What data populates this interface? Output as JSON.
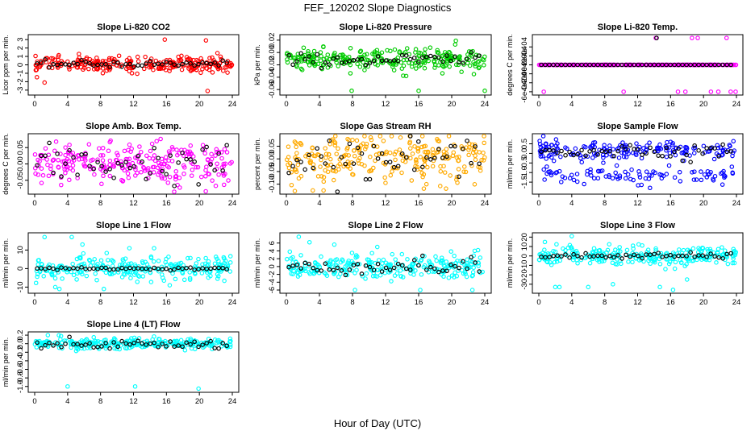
{
  "figure": {
    "title": "FEF_120202  Slope Diagnostics",
    "xlabel": "Hour of Day (UTC)"
  },
  "chart_data": [
    {
      "type": "scatter",
      "title": "Slope Li-820 CO2",
      "ylabel": "Licor ppm per min.",
      "color": "#ff0000",
      "center": 0.1,
      "spread": 0.45,
      "ylim": [
        -3.3,
        3.3
      ],
      "yticks": [
        -3,
        -2,
        -1,
        0,
        1,
        2,
        3
      ],
      "ytick_labels": [
        "-3",
        "-2",
        "-1",
        "0",
        "1",
        "2",
        "3"
      ],
      "black_center": 0.1,
      "black_spread": 0.2,
      "extremes": [
        [
          15.8,
          3.0
        ],
        [
          20.8,
          2.9
        ],
        [
          1.2,
          -2.1
        ],
        [
          21.0,
          -3.1
        ]
      ]
    },
    {
      "type": "scatter",
      "title": "Slope Li-820 Pressure",
      "ylabel": "kPa per min.",
      "color": "#00cc00",
      "center": -0.012,
      "spread": 0.009,
      "ylim": [
        -0.065,
        0.025
      ],
      "yticks": [
        -0.06,
        -0.04,
        -0.02,
        0.0,
        0.02
      ],
      "ytick_labels": [
        "-0.06",
        "-0.04",
        "-0.02",
        "0.00",
        "0.02"
      ],
      "black_center": -0.012,
      "black_spread": 0.005,
      "extremes": [
        [
          7.9,
          -0.062
        ],
        [
          16.0,
          -0.062
        ],
        [
          24.0,
          -0.062
        ],
        [
          20.5,
          0.019
        ]
      ]
    },
    {
      "type": "scatter",
      "title": "Slope Li-820 Temp.",
      "ylabel": "degrees C per min.",
      "color": "#ff00ff",
      "center": 0.0,
      "spread": 0.0,
      "ylim": [
        -0.00062,
        0.00062
      ],
      "yticks": [
        -0.0006,
        -0.0004,
        -0.0002,
        0.0,
        0.0002,
        0.0004
      ],
      "ytick_labels": [
        "-6e-04",
        "-4e-04",
        "-2e-04",
        "0e+00",
        "2e-04",
        "4e-04"
      ],
      "black_center": 0.0,
      "black_spread": 0.0,
      "extremes": [
        [
          0.6,
          -0.0006
        ],
        [
          10.3,
          -0.0006
        ],
        [
          14.2,
          0.0006
        ],
        [
          16.9,
          -0.0006
        ],
        [
          17.8,
          -0.0006
        ],
        [
          18.6,
          0.0006
        ],
        [
          19.3,
          0.0006
        ],
        [
          20.9,
          -0.0006
        ],
        [
          21.8,
          -0.0006
        ],
        [
          22.8,
          0.0006
        ],
        [
          23.3,
          -0.0006
        ],
        [
          23.9,
          -0.0006
        ]
      ],
      "black_extremes": [
        [
          14.3,
          0.0006
        ]
      ]
    },
    {
      "type": "scatter",
      "title": "Slope Amb. Box Temp.",
      "ylabel": "degrees C per min.",
      "color": "#ff00ff",
      "center": 0.0,
      "spread": 0.032,
      "ylim": [
        -0.085,
        0.085
      ],
      "yticks": [
        -0.05,
        0.0,
        0.05
      ],
      "ytick_labels": [
        "-0.05",
        "0.00",
        "0.05"
      ],
      "black_center": 0.0,
      "black_spread": 0.03,
      "extremes": []
    },
    {
      "type": "scatter",
      "title": "Slope Gas Stream RH",
      "ylabel": "percent per min.",
      "color": "#ffaa00",
      "center": 0.0,
      "spread": 0.045,
      "ylim": [
        -0.13,
        0.09
      ],
      "yticks": [
        -0.1,
        -0.05,
        0.0,
        0.05
      ],
      "ytick_labels": [
        "-0.10",
        "-0.05",
        "0.00",
        "0.05"
      ],
      "black_center": 0.0,
      "black_spread": 0.04,
      "extremes": [
        [
          3.2,
          -0.125
        ],
        [
          4.5,
          -0.125
        ],
        [
          8.0,
          0.075
        ],
        [
          10.2,
          0.085
        ]
      ]
    },
    {
      "type": "scatter",
      "title": "Slope Sample Flow",
      "ylabel": "ml/min per min.",
      "color": "#0000ff",
      "center": 0.15,
      "spread": 0.25,
      "ylim": [
        -2.0,
        0.9
      ],
      "yticks": [
        -1.5,
        -1.0,
        -0.5,
        0.0,
        0.5
      ],
      "ytick_labels": [
        "-1.5",
        "-1.0",
        "-0.5",
        "0.0",
        "0.5"
      ],
      "black_center": 0.15,
      "black_spread": 0.2,
      "second_band": -1.15,
      "second_spread": 0.2,
      "extremes": [
        [
          5.5,
          -1.6
        ],
        [
          13.5,
          -1.8
        ],
        [
          16.0,
          0.6
        ]
      ]
    },
    {
      "type": "scatter",
      "title": "Slope Line 1 Flow",
      "ylabel": "ml/min per min.",
      "color": "#00ffff",
      "center": 0.0,
      "spread": 3.0,
      "ylim": [
        -12,
        18
      ],
      "yticks": [
        -10,
        0,
        10
      ],
      "ytick_labels": [
        "-10",
        "0",
        "10"
      ],
      "black_center": 0.0,
      "black_spread": 0.3,
      "extremes": [
        [
          1.2,
          17
        ],
        [
          2.5,
          -10
        ],
        [
          3.0,
          -11
        ],
        [
          4.5,
          17
        ],
        [
          5.8,
          13
        ],
        [
          8.4,
          -11
        ],
        [
          11.5,
          11
        ],
        [
          14.5,
          11
        ],
        [
          16.4,
          -9
        ]
      ]
    },
    {
      "type": "scatter",
      "title": "Slope Line 2 Flow",
      "ylabel": "ml/min per min.",
      "color": "#00ffff",
      "center": 0.0,
      "spread": 1.6,
      "ylim": [
        -6.2,
        8
      ],
      "yticks": [
        -6,
        -4,
        -2,
        0,
        2,
        4,
        6
      ],
      "ytick_labels": [
        "-6",
        "-4",
        "-2",
        "0",
        "2",
        "4",
        "6"
      ],
      "black_center": 0.0,
      "black_spread": 1.0,
      "extremes": [
        [
          1.5,
          7.6
        ],
        [
          2.8,
          6.2
        ],
        [
          5.8,
          5.6
        ],
        [
          8.3,
          -6
        ],
        [
          11.0,
          5
        ],
        [
          16.2,
          -6
        ],
        [
          22.5,
          -6
        ]
      ]
    },
    {
      "type": "scatter",
      "title": "Slope Line 3 Flow",
      "ylabel": "ml/min per min.",
      "color": "#00ffff",
      "center": 0.0,
      "spread": 5.0,
      "ylim": [
        -37,
        22
      ],
      "yticks": [
        -30,
        -20,
        -10,
        0,
        10,
        20
      ],
      "ytick_labels": [
        "-30",
        "-20",
        "-10",
        "0",
        "10",
        "20"
      ],
      "black_center": 0.0,
      "black_spread": 1.5,
      "extremes": [
        [
          2.0,
          -33
        ],
        [
          2.5,
          -33
        ],
        [
          4.0,
          21
        ],
        [
          6.0,
          -33
        ],
        [
          9.0,
          -30
        ],
        [
          14.7,
          -33
        ],
        [
          16.3,
          -36
        ],
        [
          18.0,
          -25
        ]
      ]
    },
    {
      "type": "scatter",
      "title": "Slope Line 4 (LT) Flow",
      "ylabel": "ml/min per min.",
      "color": "#00ffff",
      "center": 0.0,
      "spread": 0.06,
      "ylim": [
        -1.08,
        0.22
      ],
      "yticks": [
        -1.0,
        -0.8,
        -0.6,
        -0.4,
        -0.2,
        0.0,
        0.2
      ],
      "ytick_labels": [
        "-1.0",
        "-0.8",
        "-0.6",
        "-0.4",
        "-0.2",
        "0.0",
        "0.2"
      ],
      "black_center": -0.02,
      "black_spread": 0.05,
      "extremes": [
        [
          4.0,
          -1.0
        ],
        [
          12.2,
          -1.0
        ],
        [
          19.9,
          -1.05
        ],
        [
          1.6,
          0.2
        ],
        [
          3.2,
          0.18
        ]
      ]
    }
  ],
  "x_axis": {
    "xlim": [
      0,
      24
    ],
    "xticks": [
      0,
      4,
      8,
      12,
      16,
      20,
      24
    ],
    "xtick_labels": [
      "0",
      "4",
      "8",
      "12",
      "16",
      "20",
      "24"
    ]
  }
}
